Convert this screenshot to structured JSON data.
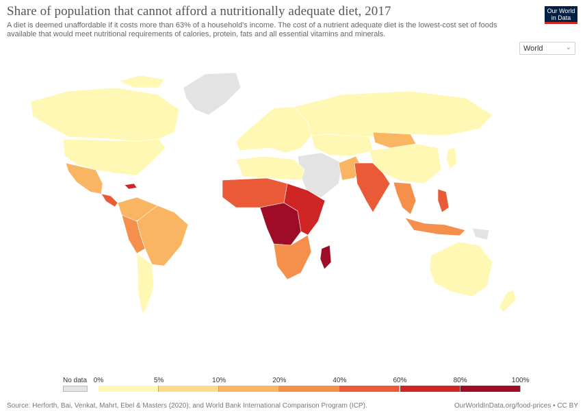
{
  "title": "Share of population that cannot afford a nutritionally adequate diet, 2017",
  "subtitle": "A diet is deemed unaffordable if it costs more than 63% of a household's income. The cost of a nutrient adequate diet is the lowest-cost set of foods available that would meet nutritional requirements of calories, protein, fats and all essential vitamins and minerals.",
  "logo": {
    "line1": "Our World",
    "line2": "in Data"
  },
  "region_select": {
    "value": "World"
  },
  "legend": {
    "no_data_label": "No data",
    "no_data_color": "#e3e3e3",
    "ticks": [
      "0%",
      "5%",
      "10%",
      "20%",
      "40%",
      "60%",
      "80%",
      "100%"
    ],
    "colors": [
      "#fff8b4",
      "#fcdc8c",
      "#f9b561",
      "#f48f4c",
      "#ea5a37",
      "#cf2525",
      "#9e0c26"
    ]
  },
  "footer": {
    "source": "Source: Herforth, Bai, Venkat, Mahrt, Ebel & Masters (2020); and World Bank International Comparison Program (ICP).",
    "credit": "OurWorldInData.org/food-prices • CC BY"
  }
}
